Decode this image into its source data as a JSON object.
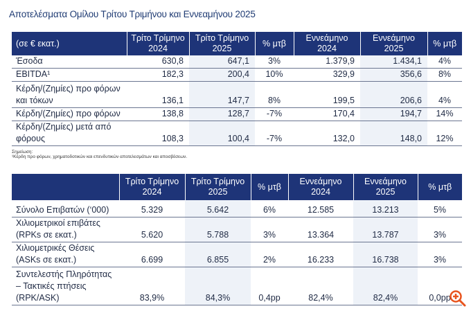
{
  "title": "Αποτελέσματα Ομίλου Τρίτου Τριμήνου και Εννεαμήνου 2025",
  "table1": {
    "headers": [
      "(σε € εκατ.)",
      "Τρίτο Τρίμηνο 2024",
      "Τρίτο Τρίμηνο 2025",
      "% μτβ",
      "Εννεάμηνο 2024",
      "Εννεάμηνο 2025",
      "% μτβ"
    ],
    "rows": [
      [
        "Έσοδα",
        "630,8",
        "647,1",
        "3%",
        "1.379,9",
        "1.434,1",
        "4%"
      ],
      [
        "EBITDA¹",
        "182,3",
        "200,4",
        "10%",
        "329,9",
        "356,6",
        "8%"
      ],
      [
        "Κέρδη/(Ζημίες) προ φόρων και τόκων",
        "136,1",
        "147,7",
        "8%",
        "199,5",
        "206,6",
        "4%"
      ],
      [
        "Κέρδη/(Ζημίες) προ φόρων",
        "138,8",
        "128,7",
        "-7%",
        "170,4",
        "194,7",
        "14%"
      ],
      [
        "Κέρδη/(Ζημίες) μετά από φόρους",
        "108,3",
        "100,4",
        "-7%",
        "132,0",
        "148,0",
        "12%"
      ]
    ]
  },
  "notes": {
    "heading": "Σημείωση:",
    "footnote": "¹Κέρδη προ φόρων, χρηματοδοτικών και επενδυτικών αποτελεσμάτων και αποσβέσεων."
  },
  "table2": {
    "headers": [
      "",
      "Τρίτο Τρίμηνο 2024",
      "Τρίτο Τρίμηνο 2025",
      "% μτβ",
      "Εννεάμηνο 2024",
      "Εννεάμηνο 2025",
      "% μτβ"
    ],
    "rows": [
      [
        "Σύνολο Επιβατών (‘000)",
        "5.329",
        "5.642",
        "6%",
        "12.585",
        "13.213",
        "5%"
      ],
      [
        "Χιλιομετρικοί επιβάτες (RPKs σε εκατ.)",
        "5.620",
        "5.788",
        "3%",
        "13.364",
        "13.787",
        "3%"
      ],
      [
        "Χιλιομετρικές Θέσεις (ASKs σε εκατ.)",
        "6.699",
        "6.855",
        "2%",
        "16.233",
        "16.738",
        "3%"
      ],
      [
        "Συντελεστής Πληρότητας – Τακτικές πτήσεις (RPK/ASK)",
        "83,9%",
        "84,3%",
        "0,4pp",
        "82,4%",
        "82,4%",
        "0,0pp"
      ]
    ]
  },
  "colors": {
    "header": "#1e3478",
    "shade": "#eef2f8",
    "zoom": "#e8541e"
  }
}
